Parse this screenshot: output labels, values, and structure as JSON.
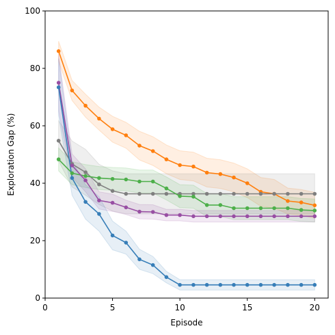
{
  "chart_data": {
    "type": "line",
    "title": "",
    "xlabel": "Episode",
    "ylabel": "Exploration Gap (%)",
    "xlim": [
      0,
      21
    ],
    "ylim": [
      0,
      100
    ],
    "xticks": [
      0,
      5,
      10,
      15,
      20
    ],
    "yticks": [
      0,
      20,
      40,
      60,
      80,
      100
    ],
    "grid": false,
    "legend": "none",
    "x": [
      1,
      2,
      3,
      4,
      5,
      6,
      7,
      8,
      9,
      10,
      11,
      12,
      13,
      14,
      15,
      16,
      17,
      18,
      19,
      20
    ],
    "series": [
      {
        "color": "#ff7f0e",
        "values": [
          86.0,
          72.3,
          67.0,
          62.5,
          58.8,
          56.7,
          53.1,
          51.2,
          48.3,
          46.3,
          45.8,
          43.7,
          43.2,
          42.0,
          40.0,
          37.0,
          36.3,
          33.8,
          33.3,
          32.3
        ],
        "band": [
          3.5,
          3.5,
          4,
          4,
          4.5,
          4.5,
          5,
          5,
          5,
          5,
          5,
          5,
          5,
          5,
          5,
          5,
          5,
          4.5,
          4.5,
          4.5
        ]
      },
      {
        "color": "#7f7f7f",
        "values": [
          54.8,
          46.7,
          43.8,
          39.6,
          37.3,
          36.3,
          36.3,
          36.3,
          36.3,
          36.3,
          36.3,
          36.3,
          36.3,
          36.3,
          36.3,
          36.3,
          36.3,
          36.3,
          36.3,
          36.3
        ],
        "band": [
          7,
          8,
          8,
          7,
          7,
          7,
          7,
          7,
          7,
          7,
          7,
          7,
          7,
          7,
          7,
          7,
          7,
          7,
          7,
          7
        ]
      },
      {
        "color": "#4daf4a",
        "values": [
          48.3,
          43.5,
          42.5,
          41.8,
          41.5,
          41.3,
          40.6,
          40.6,
          38.2,
          35.5,
          35.3,
          32.4,
          32.4,
          31.3,
          31.3,
          31.3,
          31.3,
          31.3,
          30.7,
          30.5
        ],
        "band": [
          4,
          4,
          4,
          4,
          4,
          4,
          4,
          4,
          4,
          4,
          4,
          4,
          4,
          4,
          4,
          4,
          4,
          4,
          4,
          4
        ]
      },
      {
        "color": "#984ea3",
        "values": [
          75.0,
          46.2,
          41.0,
          34.0,
          33.2,
          31.6,
          30.1,
          30.0,
          28.9,
          28.9,
          28.5,
          28.5,
          28.5,
          28.5,
          28.5,
          28.5,
          28.5,
          28.5,
          28.5,
          28.5
        ],
        "band": [
          10,
          4,
          4,
          3,
          3,
          2.5,
          2.5,
          2.5,
          2,
          2,
          2,
          2,
          2,
          2,
          2,
          2,
          2,
          2,
          2,
          2
        ]
      },
      {
        "color": "#377eb8",
        "values": [
          73.4,
          41.8,
          33.5,
          29.3,
          21.8,
          19.3,
          13.5,
          11.5,
          7.3,
          4.6,
          4.6,
          4.6,
          4.6,
          4.6,
          4.6,
          4.6,
          4.6,
          4.6,
          4.6,
          4.6
        ],
        "band": [
          10,
          6,
          6,
          6,
          5,
          4,
          3.5,
          3,
          2,
          1.8,
          1.8,
          1.8,
          1.8,
          1.8,
          1.8,
          1.8,
          1.8,
          1.8,
          1.8,
          1.8
        ]
      }
    ]
  }
}
